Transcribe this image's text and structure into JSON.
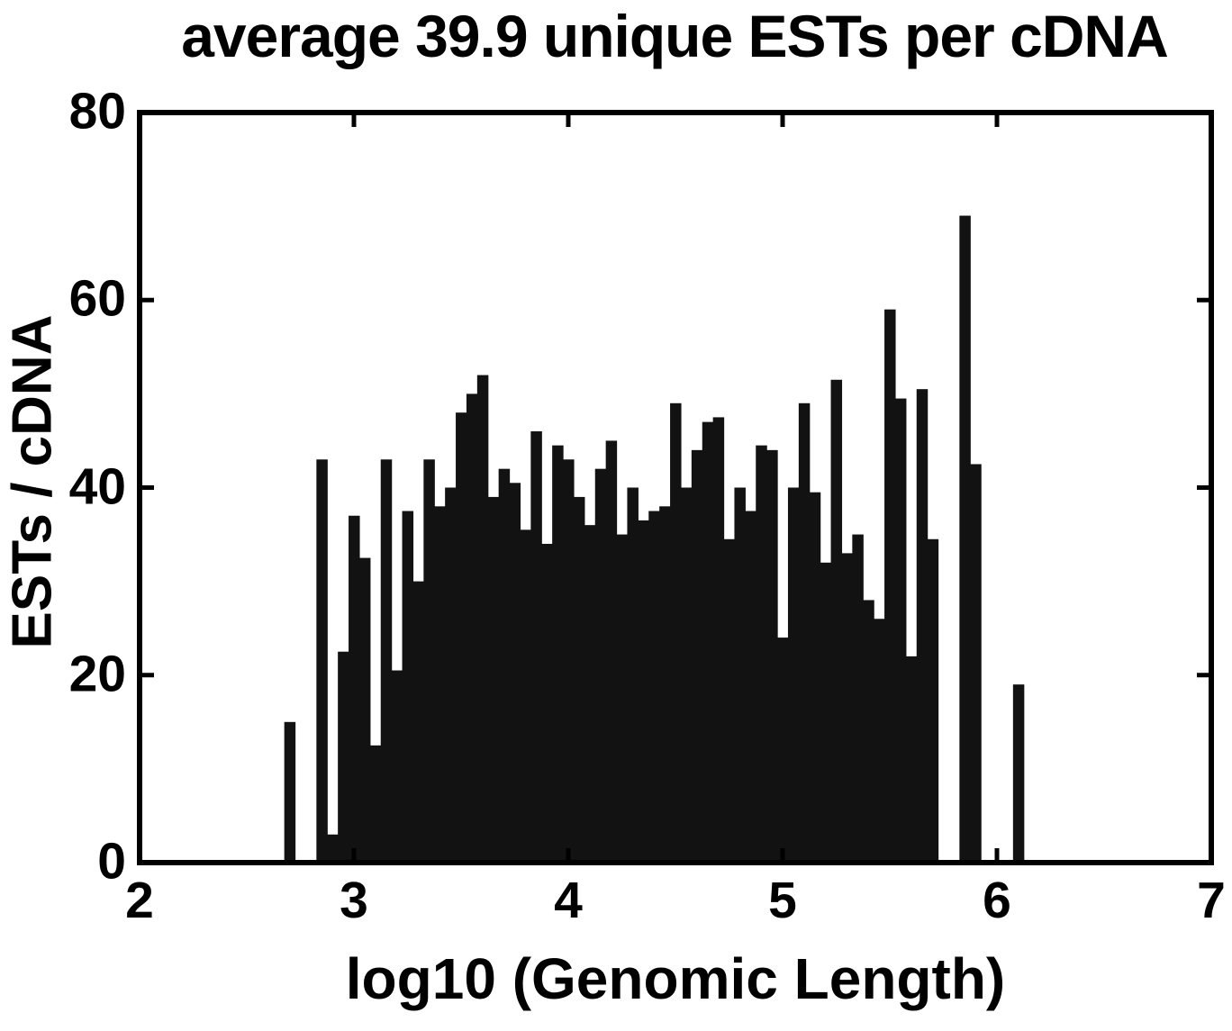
{
  "chart_data": {
    "type": "bar",
    "title": "average 39.9 unique ESTs per cDNA",
    "xlabel": "log10 (Genomic Length)",
    "ylabel": "ESTs / cDNA",
    "xlim": [
      2,
      7
    ],
    "ylim": [
      0,
      80
    ],
    "x_ticks": [
      2,
      3,
      4,
      5,
      6,
      7
    ],
    "y_ticks": [
      0,
      20,
      40,
      60,
      80
    ],
    "grid": false,
    "legend": "none",
    "bar_width": 0.05,
    "bar_color": "#121212",
    "axis_color": "#000000",
    "background_color": "#ffffff",
    "bars": [
      [
        2.7,
        15
      ],
      [
        2.85,
        43
      ],
      [
        2.9,
        3
      ],
      [
        2.95,
        22.5
      ],
      [
        3.0,
        37
      ],
      [
        3.05,
        32.5
      ],
      [
        3.1,
        12.5
      ],
      [
        3.15,
        43
      ],
      [
        3.2,
        20.5
      ],
      [
        3.25,
        37.5
      ],
      [
        3.3,
        30
      ],
      [
        3.35,
        43
      ],
      [
        3.4,
        38
      ],
      [
        3.45,
        40
      ],
      [
        3.5,
        48
      ],
      [
        3.55,
        50
      ],
      [
        3.6,
        52
      ],
      [
        3.65,
        39
      ],
      [
        3.7,
        42
      ],
      [
        3.75,
        40.5
      ],
      [
        3.8,
        35.5
      ],
      [
        3.85,
        46
      ],
      [
        3.9,
        34
      ],
      [
        3.95,
        44.5
      ],
      [
        4.0,
        43
      ],
      [
        4.05,
        39
      ],
      [
        4.1,
        36
      ],
      [
        4.15,
        42
      ],
      [
        4.2,
        45
      ],
      [
        4.25,
        35
      ],
      [
        4.3,
        40
      ],
      [
        4.35,
        36.5
      ],
      [
        4.4,
        37.5
      ],
      [
        4.45,
        38
      ],
      [
        4.5,
        49
      ],
      [
        4.55,
        40
      ],
      [
        4.6,
        44
      ],
      [
        4.65,
        47
      ],
      [
        4.7,
        47.5
      ],
      [
        4.75,
        34.5
      ],
      [
        4.8,
        40
      ],
      [
        4.85,
        37.5
      ],
      [
        4.9,
        44.5
      ],
      [
        4.95,
        44
      ],
      [
        5.0,
        24
      ],
      [
        5.05,
        40
      ],
      [
        5.1,
        49
      ],
      [
        5.15,
        39.5
      ],
      [
        5.2,
        32
      ],
      [
        5.25,
        51.5
      ],
      [
        5.3,
        33
      ],
      [
        5.35,
        35
      ],
      [
        5.4,
        28
      ],
      [
        5.45,
        26
      ],
      [
        5.5,
        59
      ],
      [
        5.55,
        49.5
      ],
      [
        5.6,
        22
      ],
      [
        5.65,
        50.5
      ],
      [
        5.7,
        34.5
      ],
      [
        5.85,
        69
      ],
      [
        5.9,
        42.5
      ],
      [
        6.1,
        19
      ]
    ]
  }
}
